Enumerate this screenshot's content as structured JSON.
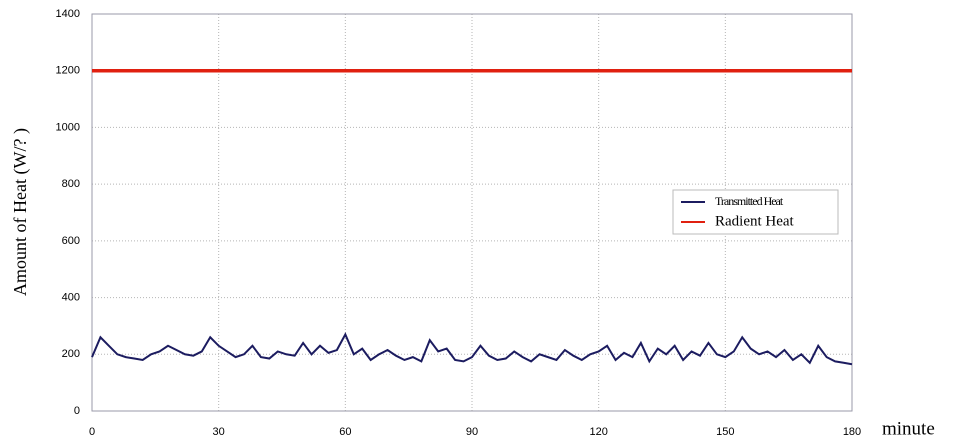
{
  "chart_data": {
    "type": "line",
    "x_label": "minute",
    "y_label": "Amount of Heat (W/? )",
    "xlim": [
      0,
      180
    ],
    "xticks": [
      0,
      30,
      60,
      90,
      120,
      150,
      180
    ],
    "ylim": [
      0,
      1400
    ],
    "yticks": [
      0,
      200,
      400,
      600,
      800,
      1000,
      1200,
      1400
    ],
    "grid": true,
    "legend": "right",
    "series": [
      {
        "name": "Transmitted Heat",
        "color": "#1c1c60",
        "x": [
          0,
          2,
          4,
          6,
          8,
          10,
          12,
          14,
          16,
          18,
          20,
          22,
          24,
          26,
          28,
          30,
          32,
          34,
          36,
          38,
          40,
          42,
          44,
          46,
          48,
          50,
          52,
          54,
          56,
          58,
          60,
          62,
          64,
          66,
          68,
          70,
          72,
          74,
          76,
          78,
          80,
          82,
          84,
          86,
          88,
          90,
          92,
          94,
          96,
          98,
          100,
          102,
          104,
          106,
          108,
          110,
          112,
          114,
          116,
          118,
          120,
          122,
          124,
          126,
          128,
          130,
          132,
          134,
          136,
          138,
          140,
          142,
          144,
          146,
          148,
          150,
          152,
          154,
          156,
          158,
          160,
          162,
          164,
          166,
          168,
          170,
          172,
          174,
          176,
          178,
          180
        ],
        "values": [
          190,
          260,
          230,
          200,
          190,
          185,
          180,
          200,
          210,
          230,
          215,
          200,
          195,
          210,
          260,
          230,
          210,
          190,
          200,
          230,
          190,
          185,
          210,
          200,
          195,
          240,
          200,
          230,
          205,
          215,
          270,
          200,
          220,
          180,
          200,
          215,
          195,
          180,
          190,
          175,
          250,
          210,
          220,
          180,
          175,
          190,
          230,
          195,
          180,
          185,
          210,
          190,
          175,
          200,
          190,
          180,
          215,
          195,
          180,
          200,
          210,
          230,
          180,
          205,
          190,
          240,
          175,
          220,
          200,
          230,
          180,
          210,
          195,
          240,
          200,
          190,
          210,
          260,
          220,
          200,
          210,
          190,
          215,
          180,
          200,
          170,
          230,
          190,
          175,
          170,
          165
        ]
      },
      {
        "name": "Radient Heat",
        "color": "#e02010",
        "x": [
          0,
          180
        ],
        "values": [
          1200,
          1200
        ]
      }
    ]
  }
}
